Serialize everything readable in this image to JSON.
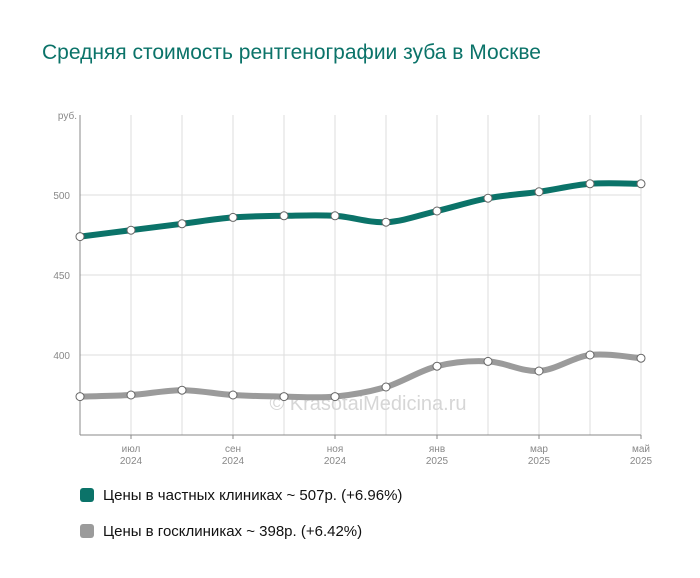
{
  "colors": {
    "private": "#0b7369",
    "public": "#9b9b9b",
    "title": "#0b7369"
  },
  "chart_data": {
    "type": "line",
    "title": "Средняя стоимость рентгенографии зуба в Москве",
    "ylabel": "руб.",
    "watermark": "© KrasotaiMedicina.ru",
    "ylim": [
      350,
      550
    ],
    "yticks": [
      400,
      450,
      500
    ],
    "x": [
      "2024-06",
      "2024-07",
      "2024-08",
      "2024-09",
      "2024-10",
      "2024-11",
      "2024-12",
      "2025-01",
      "2025-02",
      "2025-03",
      "2025-04",
      "2025-05"
    ],
    "xtick_labels": [
      {
        "index": 1,
        "month": "июл",
        "year": "2024"
      },
      {
        "index": 3,
        "month": "сен",
        "year": "2024"
      },
      {
        "index": 5,
        "month": "ноя",
        "year": "2024"
      },
      {
        "index": 7,
        "month": "янв",
        "year": "2025"
      },
      {
        "index": 9,
        "month": "мар",
        "year": "2025"
      },
      {
        "index": 11,
        "month": "май",
        "year": "2025"
      }
    ],
    "grid": true,
    "legend_position": "bottom",
    "series": [
      {
        "name": "Цены в частных клиниках ~ 507р. (+6.96%)",
        "color": "#0b7369",
        "values": [
          474,
          478,
          482,
          486,
          487,
          487,
          483,
          490,
          498,
          502,
          507,
          507
        ]
      },
      {
        "name": "Цены в госклиниках ~ 398р. (+6.42%)",
        "color": "#9b9b9b",
        "values": [
          374,
          375,
          378,
          375,
          374,
          374,
          380,
          393,
          396,
          390,
          400,
          398
        ]
      }
    ]
  }
}
